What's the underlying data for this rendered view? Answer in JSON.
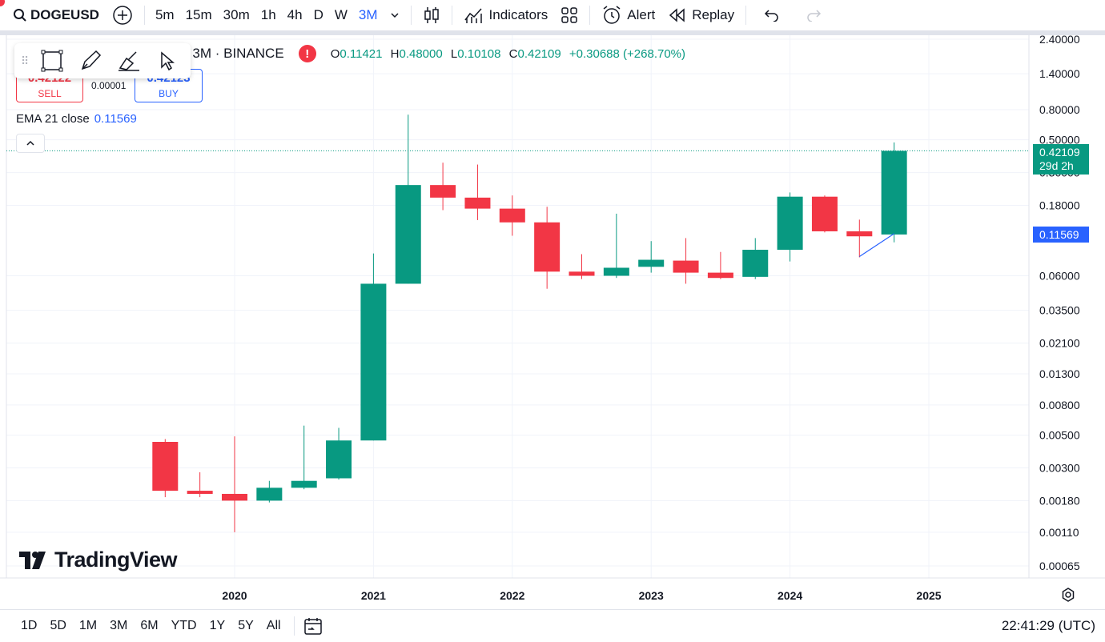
{
  "toolbar": {
    "symbol": "DOGEUSD",
    "timeframes": [
      "5m",
      "15m",
      "30m",
      "1h",
      "4h",
      "D",
      "W",
      "3M"
    ],
    "active_timeframe": "3M",
    "indicators_label": "Indicators",
    "alert_label": "Alert",
    "replay_label": "Replay"
  },
  "legend": {
    "title": "· 3M · BINANCE",
    "o_label": "O",
    "o": "0.11421",
    "h_label": "H",
    "h": "0.48000",
    "l_label": "L",
    "l": "0.10108",
    "c_label": "C",
    "c": "0.42109",
    "change": "+0.30688 (+268.70%)"
  },
  "trade": {
    "sell_price": "0.42122",
    "sell_label": "SELL",
    "spread": "0.00001",
    "buy_price": "0.42123",
    "buy_label": "BUY"
  },
  "ema": {
    "label": "EMA 21 close",
    "value": "0.11569"
  },
  "price_labels": {
    "last": "0.42109",
    "countdown": "29d 2h",
    "ema": "0.11569"
  },
  "logo_text": "TradingView",
  "ranges": [
    "1D",
    "5D",
    "1M",
    "3M",
    "6M",
    "YTD",
    "1Y",
    "5Y",
    "All"
  ],
  "clock": "22:41:29 (UTC)",
  "colors": {
    "up": "#089981",
    "down": "#f23645",
    "accent": "#2962ff",
    "grid": "#f0f3fa"
  },
  "chart_data": {
    "type": "candlestick",
    "scale": "log",
    "ylim": [
      0.0005,
      2.6
    ],
    "y_ticks": [
      "2.40000",
      "1.40000",
      "0.80000",
      "0.50000",
      "0.30000",
      "0.18000",
      "0.06000",
      "0.03500",
      "0.02100",
      "0.01300",
      "0.00800",
      "0.00500",
      "0.00300",
      "0.00180",
      "0.00110",
      "0.00065"
    ],
    "x_ticks": [
      "2020",
      "2021",
      "2022",
      "2023",
      "2024",
      "2025"
    ],
    "x_tick_values": [
      2020,
      2021,
      2022,
      2023,
      2024,
      2025
    ],
    "candles": [
      {
        "t": 2019.5,
        "o": 0.0045,
        "h": 0.0047,
        "l": 0.0019,
        "c": 0.0021
      },
      {
        "t": 2019.75,
        "o": 0.0021,
        "h": 0.0028,
        "l": 0.0019,
        "c": 0.002
      },
      {
        "t": 2020.0,
        "o": 0.002,
        "h": 0.0049,
        "l": 0.0011,
        "c": 0.0018
      },
      {
        "t": 2020.25,
        "o": 0.0018,
        "h": 0.00245,
        "l": 0.00175,
        "c": 0.0022
      },
      {
        "t": 2020.5,
        "o": 0.0022,
        "h": 0.0058,
        "l": 0.00215,
        "c": 0.00245
      },
      {
        "t": 2020.75,
        "o": 0.00255,
        "h": 0.0056,
        "l": 0.0025,
        "c": 0.0046
      },
      {
        "t": 2021.0,
        "o": 0.0046,
        "h": 0.085,
        "l": 0.0046,
        "c": 0.053
      },
      {
        "t": 2021.25,
        "o": 0.053,
        "h": 0.74,
        "l": 0.053,
        "c": 0.247
      },
      {
        "t": 2021.5,
        "o": 0.247,
        "h": 0.35,
        "l": 0.167,
        "c": 0.203
      },
      {
        "t": 2021.75,
        "o": 0.203,
        "h": 0.34,
        "l": 0.143,
        "c": 0.171
      },
      {
        "t": 2022.0,
        "o": 0.171,
        "h": 0.21,
        "l": 0.112,
        "c": 0.138
      },
      {
        "t": 2022.25,
        "o": 0.138,
        "h": 0.176,
        "l": 0.049,
        "c": 0.064
      },
      {
        "t": 2022.5,
        "o": 0.064,
        "h": 0.084,
        "l": 0.057,
        "c": 0.06
      },
      {
        "t": 2022.75,
        "o": 0.06,
        "h": 0.158,
        "l": 0.058,
        "c": 0.068
      },
      {
        "t": 2023.0,
        "o": 0.069,
        "h": 0.103,
        "l": 0.063,
        "c": 0.077
      },
      {
        "t": 2023.25,
        "o": 0.076,
        "h": 0.108,
        "l": 0.053,
        "c": 0.063
      },
      {
        "t": 2023.5,
        "o": 0.063,
        "h": 0.087,
        "l": 0.057,
        "c": 0.058
      },
      {
        "t": 2023.75,
        "o": 0.059,
        "h": 0.108,
        "l": 0.057,
        "c": 0.09
      },
      {
        "t": 2024.0,
        "o": 0.09,
        "h": 0.22,
        "l": 0.075,
        "c": 0.206
      },
      {
        "t": 2024.25,
        "o": 0.206,
        "h": 0.21,
        "l": 0.118,
        "c": 0.12
      },
      {
        "t": 2024.5,
        "o": 0.12,
        "h": 0.144,
        "l": 0.08,
        "c": 0.111
      },
      {
        "t": 2024.75,
        "o": 0.11421,
        "h": 0.48,
        "l": 0.10108,
        "c": 0.42109
      }
    ],
    "ema": [
      {
        "t": 2024.5,
        "v": 0.081
      },
      {
        "t": 2024.75,
        "v": 0.11569
      }
    ],
    "last_price": 0.42109
  }
}
